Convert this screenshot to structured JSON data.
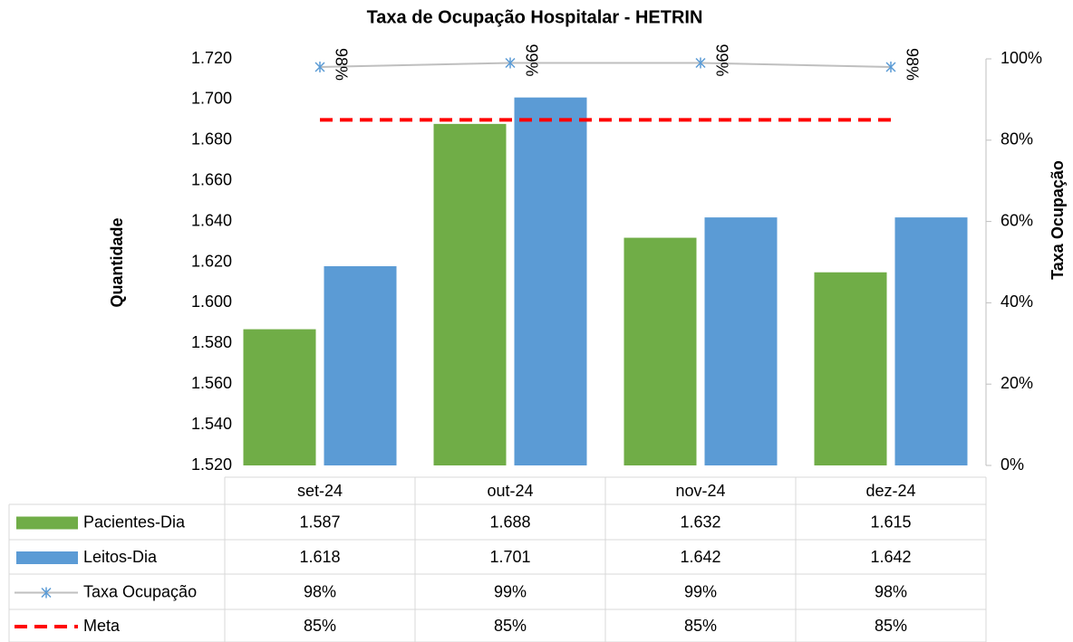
{
  "chart_data": {
    "type": "bar",
    "title": "Taxa de Ocupação Hospitalar - HETRIN",
    "ylabel": "Quantidade",
    "y2label": "Taxa Ocupação",
    "categories": [
      "set-24",
      "out-24",
      "nov-24",
      "dez-24"
    ],
    "series": [
      {
        "name": "Pacientes-Dia",
        "type": "bar",
        "color": "#70ad47",
        "values": [
          1587,
          1688,
          1632,
          1615
        ],
        "value_labels": [
          "1.587",
          "1.688",
          "1.632",
          "1.615"
        ]
      },
      {
        "name": "Leitos-Dia",
        "type": "bar",
        "color": "#5b9bd5",
        "values": [
          1618,
          1701,
          1642,
          1642
        ],
        "value_labels": [
          "1.618",
          "1.701",
          "1.642",
          "1.642"
        ]
      },
      {
        "name": "Taxa Ocupação",
        "type": "line",
        "axis": "y2",
        "color": "#bfbfbf",
        "marker_color": "#5b9bd5",
        "values": [
          98,
          99,
          99,
          98
        ],
        "value_labels": [
          "98%",
          "99%",
          "99%",
          "98%"
        ]
      },
      {
        "name": "Meta",
        "type": "dashed",
        "axis": "y2",
        "color": "#ff0000",
        "values": [
          85,
          85,
          85,
          85
        ],
        "value_labels": [
          "85%",
          "85%",
          "85%",
          "85%"
        ]
      }
    ],
    "ylim": [
      1520,
      1720
    ],
    "yticks": [
      {
        "value": 1520,
        "label": "1.520"
      },
      {
        "value": 1540,
        "label": "1.540"
      },
      {
        "value": 1560,
        "label": "1.560"
      },
      {
        "value": 1580,
        "label": "1.580"
      },
      {
        "value": 1600,
        "label": "1.600"
      },
      {
        "value": 1620,
        "label": "1.620"
      },
      {
        "value": 1640,
        "label": "1.640"
      },
      {
        "value": 1660,
        "label": "1.660"
      },
      {
        "value": 1680,
        "label": "1.680"
      },
      {
        "value": 1700,
        "label": "1.700"
      },
      {
        "value": 1720,
        "label": "1.720"
      }
    ],
    "y2lim": [
      0,
      100
    ],
    "y2ticks": [
      {
        "value": 0,
        "label": "0%"
      },
      {
        "value": 20,
        "label": "20%"
      },
      {
        "value": 40,
        "label": "40%"
      },
      {
        "value": 60,
        "label": "60%"
      },
      {
        "value": 80,
        "label": "80%"
      },
      {
        "value": 100,
        "label": "100%"
      }
    ],
    "grid": false
  }
}
